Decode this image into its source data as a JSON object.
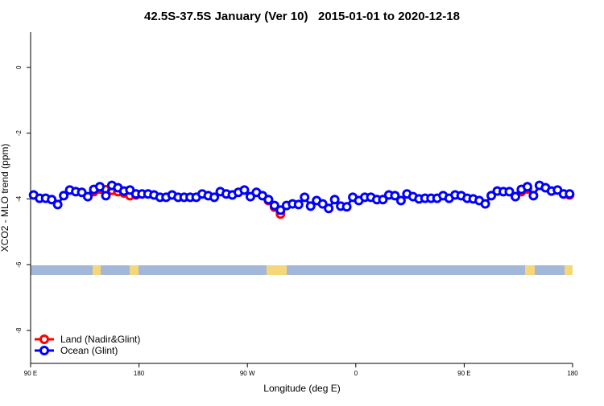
{
  "chart_data": {
    "type": "line",
    "title": "42.5S-37.5S January (Ver 10)   2015-01-01 to 2020-12-18",
    "x_label": "Longitude (deg E)",
    "y_label": "XCO2 - MLO trend (ppm)",
    "xlim": [
      90,
      540
    ],
    "ylim": [
      -9,
      1.07
    ],
    "xticks": [
      {
        "value": 90,
        "label": "90 E"
      },
      {
        "value": 180,
        "label": "180"
      },
      {
        "value": 270,
        "label": "90 W"
      },
      {
        "value": 360,
        "label": "0"
      },
      {
        "value": 450,
        "label": "90 E"
      },
      {
        "value": 540,
        "label": "180"
      }
    ],
    "yticks": [
      0,
      -2,
      -4,
      -6,
      -8
    ],
    "legend": "bottom-left",
    "x": [
      92.5,
      97.5,
      102.5,
      107.5,
      112.5,
      117.5,
      122.5,
      127.5,
      132.5,
      137.5,
      142.5,
      147.5,
      152.5,
      157.5,
      162.5,
      167.5,
      172.5,
      177.5,
      182.5,
      187.5,
      192.5,
      197.5,
      202.5,
      207.5,
      212.5,
      217.5,
      222.5,
      227.5,
      232.5,
      237.5,
      242.5,
      247.5,
      252.5,
      257.5,
      262.5,
      267.5,
      272.5,
      277.5,
      282.5,
      287.5,
      292.5,
      297.5,
      302.5,
      307.5,
      312.5,
      317.5,
      322.5,
      327.5,
      332.5,
      337.5,
      342.5,
      347.5,
      352.5,
      357.5,
      362.5,
      367.5,
      372.5,
      377.5,
      382.5,
      387.5,
      392.5,
      397.5,
      402.5,
      407.5,
      412.5,
      417.5,
      422.5,
      427.5,
      432.5,
      437.5,
      442.5,
      447.5,
      452.5,
      457.5,
      462.5,
      467.5,
      472.5,
      477.5,
      482.5,
      487.5,
      492.5,
      497.5,
      502.5,
      507.5,
      512.5,
      517.5,
      522.5,
      527.5,
      532.5,
      537.5
    ],
    "series": [
      {
        "name": "Land (Nadir&Glint)",
        "color": "#ff0000",
        "values": [
          null,
          null,
          null,
          null,
          null,
          null,
          null,
          null,
          null,
          null,
          -3.78,
          -3.7,
          -3.72,
          -3.74,
          -3.78,
          -3.82,
          -3.9,
          -3.88,
          null,
          null,
          null,
          null,
          null,
          null,
          null,
          null,
          null,
          null,
          null,
          null,
          null,
          null,
          null,
          null,
          null,
          null,
          null,
          null,
          null,
          -4.05,
          -4.25,
          -4.46,
          null,
          null,
          null,
          null,
          null,
          null,
          null,
          null,
          null,
          null,
          null,
          null,
          null,
          null,
          null,
          null,
          null,
          null,
          null,
          null,
          null,
          null,
          null,
          null,
          null,
          null,
          null,
          null,
          null,
          null,
          null,
          null,
          null,
          null,
          null,
          null,
          null,
          null,
          null,
          -3.78,
          -3.7,
          null,
          null,
          null,
          null,
          null,
          -3.85,
          -3.88
        ]
      },
      {
        "name": "Ocean (Glint)",
        "color": "#0000ff",
        "values": [
          -3.88,
          -3.98,
          -3.98,
          -4.02,
          -4.17,
          -3.9,
          -3.73,
          -3.78,
          -3.8,
          -3.93,
          -3.71,
          -3.63,
          -3.9,
          -3.59,
          -3.66,
          -3.76,
          -3.73,
          -3.85,
          -3.85,
          -3.85,
          -3.88,
          -3.95,
          -3.95,
          -3.88,
          -3.95,
          -3.95,
          -3.95,
          -3.95,
          -3.85,
          -3.9,
          -3.95,
          -3.78,
          -3.85,
          -3.88,
          -3.8,
          -3.73,
          -3.93,
          -3.8,
          -3.9,
          -4.02,
          -4.2,
          -4.34,
          -4.2,
          -4.15,
          -4.17,
          -3.95,
          -4.22,
          -4.05,
          -4.15,
          -4.29,
          -4.02,
          -4.22,
          -4.24,
          -3.95,
          -4.05,
          -3.95,
          -3.95,
          -4.02,
          -4.02,
          -3.88,
          -3.9,
          -4.05,
          -3.85,
          -3.93,
          -4.0,
          -3.98,
          -3.98,
          -3.98,
          -3.9,
          -3.98,
          -3.88,
          -3.9,
          -3.98,
          -4.0,
          -4.05,
          -4.15,
          -3.9,
          -3.76,
          -3.78,
          -3.78,
          -3.93,
          -3.71,
          -3.63,
          -3.9,
          -3.59,
          -3.66,
          -3.76,
          -3.73,
          -3.85,
          -3.85
        ]
      }
    ]
  }
}
